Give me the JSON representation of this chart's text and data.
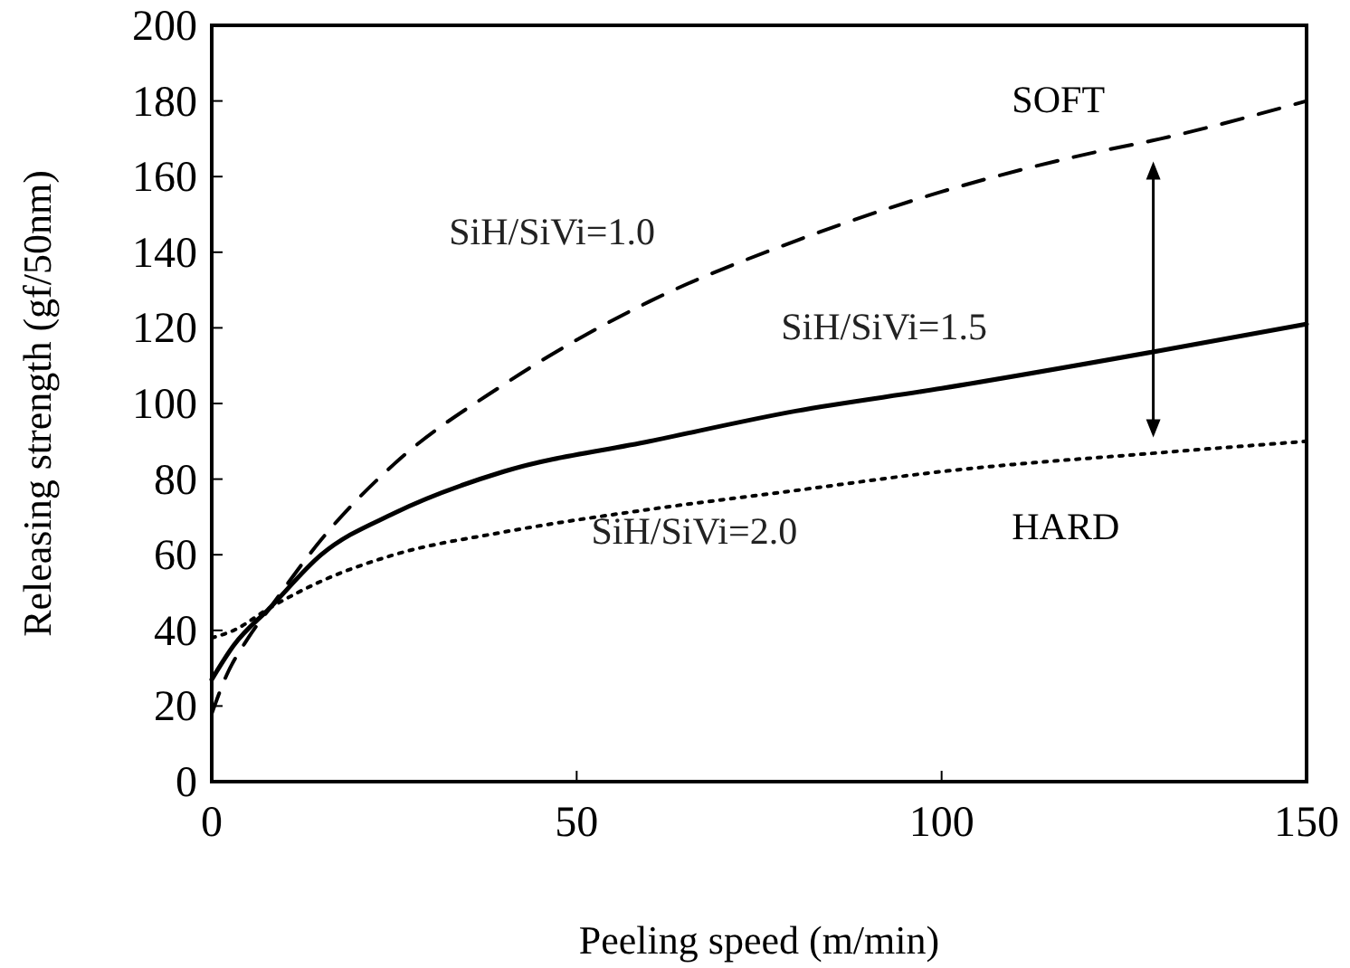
{
  "chart_data": {
    "type": "line",
    "xlabel": "Peeling speed (m/min)",
    "ylabel": "Releasing strength (gf/50nm)",
    "xlim": [
      0,
      150
    ],
    "ylim": [
      0,
      200
    ],
    "xticks": [
      0,
      50,
      100,
      150
    ],
    "yticks": [
      0,
      20,
      40,
      60,
      80,
      100,
      120,
      140,
      160,
      180,
      200
    ],
    "grid": false,
    "legend": false,
    "series": [
      {
        "name": "SiH/SiVi=1.0",
        "color": "#000000",
        "line_style": "dashed",
        "x": [
          0,
          2,
          5,
          8,
          15,
          25,
          40,
          60,
          80,
          100,
          120,
          130,
          150
        ],
        "values": [
          18,
          28,
          38,
          46,
          64,
          84,
          105,
          127,
          143,
          156,
          166,
          170,
          180
        ]
      },
      {
        "name": "SiH/SiVi=1.5",
        "color": "#000000",
        "line_style": "solid",
        "x": [
          0,
          3,
          8,
          15,
          25,
          40,
          60,
          80,
          100,
          130,
          150
        ],
        "values": [
          27,
          36,
          46,
          60,
          71,
          82,
          90,
          98,
          104,
          114,
          121
        ]
      },
      {
        "name": "SiH/SiVi=2.0",
        "color": "#000000",
        "line_style": "dotted",
        "x": [
          0,
          3,
          8,
          15,
          25,
          40,
          60,
          80,
          100,
          130,
          150
        ],
        "values": [
          38,
          40,
          46,
          53,
          60,
          66,
          72,
          77,
          82,
          87,
          90
        ]
      }
    ],
    "annotations": [
      "SOFT",
      "HARD"
    ]
  }
}
